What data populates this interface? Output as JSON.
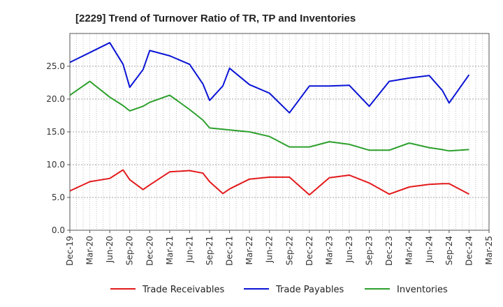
{
  "chart_data": {
    "type": "line",
    "title": "[2229]  Trend of Turnover Ratio of TR, TP and Inventories",
    "xlabel": "",
    "ylabel": "",
    "ylim": [
      0,
      30
    ],
    "yticks": [
      "0.0",
      "5.0",
      "10.0",
      "15.0",
      "20.0",
      "25.0"
    ],
    "ytick_values": [
      0,
      5,
      10,
      15,
      20,
      25
    ],
    "x_tick_labels": [
      "Dec-19",
      "Mar-20",
      "Jun-20",
      "Sep-20",
      "Dec-20",
      "Mar-21",
      "Jun-21",
      "Sep-21",
      "Dec-21",
      "Mar-22",
      "Jun-22",
      "Sep-22",
      "Dec-22",
      "Mar-23",
      "Jun-23",
      "Sep-23",
      "Dec-23",
      "Mar-24",
      "Jun-24",
      "Sep-24",
      "Dec-24",
      "Mar-25"
    ],
    "x": [
      "Dec-19",
      "Mar-20",
      "Jun-20",
      "Aug-20",
      "Sep-20",
      "Nov-20",
      "Dec-20",
      "Mar-21",
      "Jun-21",
      "Aug-21",
      "Sep-21",
      "Nov-21",
      "Dec-21",
      "Mar-22",
      "Jun-22",
      "Sep-22",
      "Dec-22",
      "Mar-23",
      "Jun-23",
      "Sep-23",
      "Dec-23",
      "Mar-24",
      "Jun-24",
      "Aug-24",
      "Sep-24",
      "Dec-24"
    ],
    "grid": true,
    "legend_position": "bottom",
    "series": [
      {
        "name": "Trade Receivables",
        "color": "#e31a1c",
        "values": [
          6.0,
          7.4,
          7.9,
          9.2,
          7.7,
          6.2,
          6.9,
          8.9,
          9.1,
          8.7,
          7.4,
          5.6,
          6.3,
          7.8,
          8.1,
          8.1,
          5.4,
          8.0,
          8.4,
          7.2,
          5.5,
          6.6,
          7.0,
          7.1,
          7.1,
          5.5
        ]
      },
      {
        "name": "Trade Payables",
        "color": "#0a14d4",
        "values": [
          25.6,
          27.1,
          28.6,
          25.3,
          21.8,
          24.5,
          27.4,
          26.6,
          25.3,
          22.3,
          19.8,
          22.0,
          24.7,
          22.2,
          20.9,
          17.9,
          22.0,
          22.0,
          22.1,
          18.9,
          22.7,
          23.2,
          23.6,
          21.3,
          19.4,
          23.7
        ]
      },
      {
        "name": "Inventories",
        "color": "#2ca02c",
        "values": [
          20.6,
          22.7,
          20.3,
          19.0,
          18.2,
          18.9,
          19.5,
          20.6,
          18.4,
          16.8,
          15.6,
          15.4,
          15.3,
          15.0,
          14.3,
          12.7,
          12.7,
          13.5,
          13.1,
          12.2,
          12.2,
          13.3,
          12.6,
          12.3,
          12.1,
          12.3
        ]
      }
    ]
  },
  "legend": {
    "items": [
      {
        "label": "Trade Receivables",
        "color": "#e31a1c"
      },
      {
        "label": "Trade Payables",
        "color": "#0a14d4"
      },
      {
        "label": "Inventories",
        "color": "#2ca02c"
      }
    ]
  }
}
